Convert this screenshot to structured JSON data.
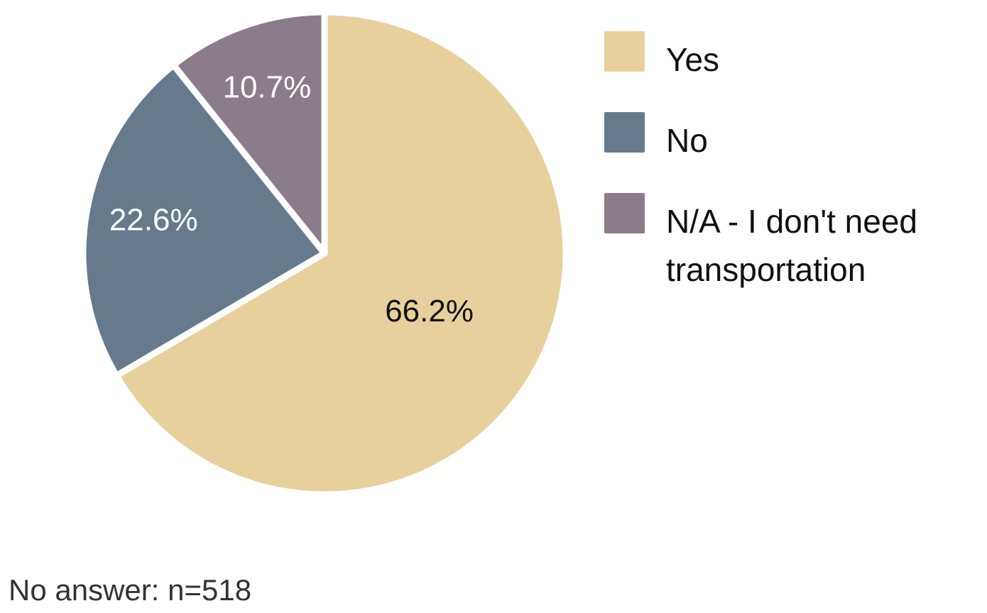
{
  "chart_data": {
    "type": "pie",
    "categories": [
      "Yes",
      "No",
      "N/A - I don't need transportation"
    ],
    "values": [
      66.2,
      22.6,
      10.7
    ],
    "value_labels": [
      "66.2%",
      "22.6%",
      "10.7%"
    ],
    "colors": [
      "#e8d09d",
      "#657a8d",
      "#8b7c89"
    ],
    "note": "No answer: n=518"
  }
}
